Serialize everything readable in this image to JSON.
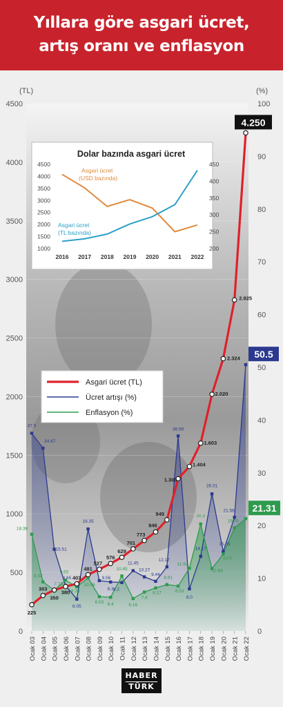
{
  "header": {
    "title_line1": "Yıllara göre asgari ücret,",
    "title_line2": "artış oranı ve enflasyon"
  },
  "logo": {
    "line1": "HABER",
    "line2": "TÜRK"
  },
  "colors": {
    "header_bg": "#c8232c",
    "wage_line": "#e0202a",
    "increase_line": "#2b3a8f",
    "inflation_line": "#2e9b4e",
    "inset_usd": "#e08a3c",
    "inset_tl": "#2b9fc9"
  },
  "chart_data": [
    {
      "type": "line",
      "left_axis_unit": "(TL)",
      "right_axis_unit": "(%)",
      "ylim_left": [
        0,
        4500
      ],
      "ylim_right": [
        0,
        100
      ],
      "left_ticks": [
        0,
        500,
        1000,
        1500,
        2000,
        2500,
        3000,
        3500,
        4000,
        4500
      ],
      "right_ticks": [
        0,
        10,
        20,
        30,
        40,
        50,
        60,
        70,
        80,
        90,
        100
      ],
      "categories": [
        "Ocak 03",
        "Ocak 04",
        "Ocak 05",
        "Ocak 06",
        "Ocak 07",
        "Ocak 08",
        "Ocak 09",
        "Ocak 10",
        "Ocak 11",
        "Ocak 12",
        "Ocak 13",
        "Ocak 14",
        "Ocak 15",
        "Ocak 16",
        "Ocak 17",
        "Ocak 18",
        "Ocak 19",
        "Ocak 20",
        "Ocak 21",
        "Ocak 22"
      ],
      "legend": [
        "Asgari ücret (TL)",
        "Ücret artışı (%)",
        "Enflasyon (%)"
      ],
      "series": [
        {
          "name": "Asgari ücret (TL)",
          "axis": "left",
          "values": [
            225,
            303,
            350,
            380,
            403,
            481,
            527,
            576,
            629,
            701,
            773,
            846,
            949,
            1300,
            1404,
            1603,
            2020,
            2324,
            2825,
            4250
          ],
          "labels": [
            "225",
            "303",
            "350",
            "380",
            "403",
            "481",
            "527",
            "576",
            "629",
            "701",
            "773",
            "846",
            "949",
            "1.300",
            "1.404",
            "1.603",
            "2.020",
            "2.324",
            "2.825",
            "4.250"
          ]
        },
        {
          "name": "Ücret artışı (%)",
          "axis": "right",
          "values": [
            37.5,
            34.67,
            15.51,
            8.65,
            6.05,
            19.35,
            9.56,
            9.3,
            9.2,
            11.45,
            10.27,
            9.44,
            12.17,
            36.99,
            8.0,
            14.17,
            26.01,
            15.05,
            21.56,
            50.5
          ],
          "labels": [
            "37.5",
            "34.67",
            "15.51",
            "8.65",
            "6.05",
            "19.35",
            "9.56",
            "9.3",
            "9.2",
            "11.45",
            "10.27",
            "9.44",
            "12.17",
            "36.99",
            "8.0",
            "14.17",
            "26.01",
            "15.05",
            "21.56",
            "50.5"
          ]
        },
        {
          "name": "Enflasyon (%)",
          "axis": "right",
          "values": [
            18.36,
            9.32,
            7.72,
            9.65,
            8.39,
            10.06,
            6.53,
            6.4,
            10.45,
            6.16,
            7.4,
            8.17,
            8.81,
            8.53,
            11.92,
            20.3,
            11.84,
            14.6,
            19.58,
            21.31
          ],
          "labels": [
            "18.36",
            "9.32",
            "7.72",
            "9.65",
            "8.39",
            "10.06",
            "6.53",
            "6.4",
            "10.45",
            "6.16",
            "7.4",
            "8.17",
            "8.81",
            "8.53",
            "11.92",
            "20.3",
            "11.84",
            "14.6",
            "19.58",
            "21.31"
          ]
        }
      ]
    },
    {
      "type": "line",
      "title": "Dolar bazında asgari ücret",
      "categories": [
        "2016",
        "2017",
        "2018",
        "2019",
        "2020",
        "2021",
        "2022"
      ],
      "ylim_left": [
        1000,
        4500
      ],
      "ylim_right": [
        200,
        450
      ],
      "left_ticks": [
        1000,
        1500,
        2000,
        2500,
        3000,
        3500,
        4000,
        4500
      ],
      "right_ticks": [
        200,
        250,
        300,
        350,
        400,
        450
      ],
      "series": [
        {
          "name": "Asgari ücret (USD bazında)",
          "axis": "right",
          "values": [
            420,
            380,
            325,
            345,
            320,
            250,
            270
          ]
        },
        {
          "name": "Asgari ücret (TL bazında)",
          "axis": "left",
          "values": [
            1300,
            1404,
            1603,
            2020,
            2324,
            2825,
            4250
          ]
        }
      ],
      "labels": {
        "usd_line1": "Asgari ücret",
        "usd_line2": "(USD bazında)",
        "tl_line1": "Asgari ücret",
        "tl_line2": "(TL bazında)"
      }
    }
  ]
}
